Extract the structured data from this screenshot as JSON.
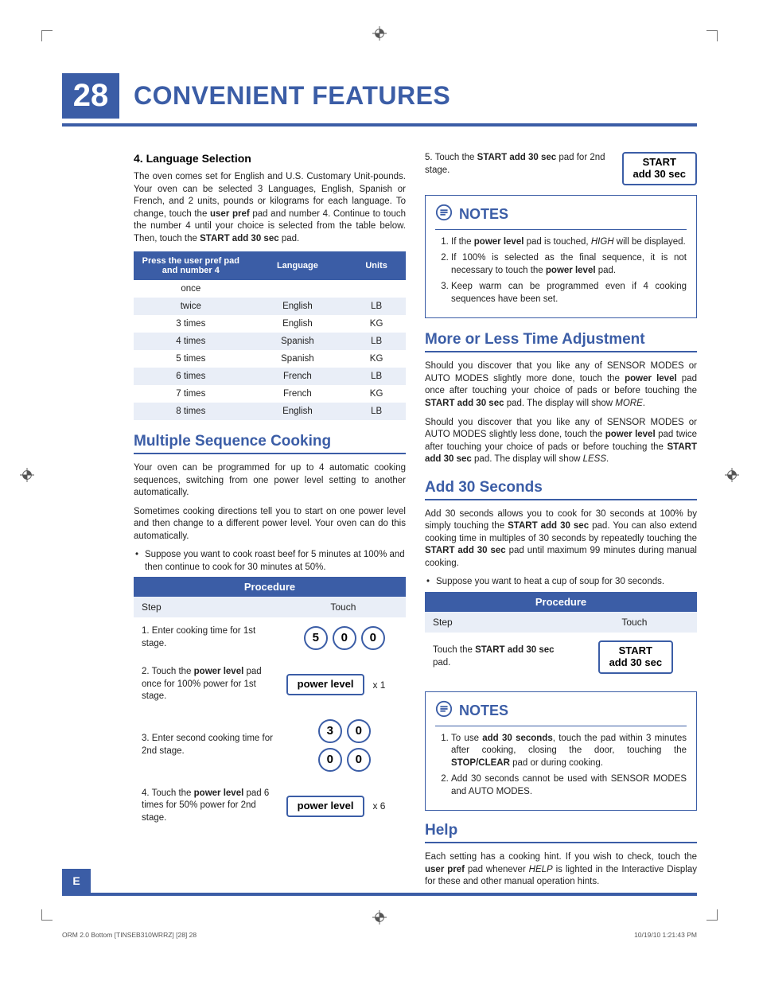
{
  "colors": {
    "accent": "#3b5da6",
    "row_alt": "#e9eef7",
    "text": "#222"
  },
  "page": {
    "number": "28",
    "title": "CONVENIENT FEATURES",
    "side_tab": "E"
  },
  "langsel": {
    "heading": "4. Language Selection",
    "intro": "The oven comes set for English and U.S. Customary Unit-pounds. Your oven can be selected 3 Languages, English, Spanish or French, and 2 units, pounds or kilograms for each language. To change, touch the <b>user pref</b> pad and number 4. Continue to touch the number 4 until your choice is selected from the table below. Then, touch the <b>START add 30 sec</b> pad.",
    "table": {
      "headers": [
        "Press the user pref pad and number 4",
        "Language",
        "Units"
      ],
      "rows": [
        [
          "once",
          "",
          ""
        ],
        [
          "twice",
          "English",
          "LB"
        ],
        [
          "3 times",
          "English",
          "KG"
        ],
        [
          "4 times",
          "Spanish",
          "LB"
        ],
        [
          "5 times",
          "Spanish",
          "KG"
        ],
        [
          "6 times",
          "French",
          "LB"
        ],
        [
          "7 times",
          "French",
          "KG"
        ],
        [
          "8 times",
          "English",
          "LB"
        ]
      ]
    }
  },
  "multiseq": {
    "title": "Multiple Sequence Cooking",
    "p1": "Your oven can be programmed for up to 4 automatic cooking sequences, switching from one power level setting to another automatically.",
    "p2": "Sometimes cooking directions tell you to start on one power level and then change to a different power level. Your oven can do this automatically.",
    "bullet": "Suppose you want to cook roast beef for 5 minutes at 100% and then continue to cook for 30 minutes at 50%.",
    "procedure_label": "Procedure",
    "step_label": "Step",
    "touch_label": "Touch",
    "steps": {
      "s1_text": "1.  Enter cooking time for 1st stage.",
      "s1_keys": [
        "5",
        "0",
        "0"
      ],
      "s2_text": "2.  Touch the <b>power level</b> pad once for 100% power for 1st stage.",
      "s2_pill": "power level",
      "s2_mult": "x 1",
      "s3_text": "3.  Enter second cooking time for 2nd stage.",
      "s3_keys_a": [
        "3",
        "0"
      ],
      "s3_keys_b": [
        "0",
        "0"
      ],
      "s4_text": "4.  Touch the <b>power level</b> pad 6 times for 50% power for 2nd stage.",
      "s4_pill": "power level",
      "s4_mult": "x 6"
    }
  },
  "right": {
    "step5_text": "5.  Touch the <b>START add 30 sec</b> pad for 2nd stage.",
    "step5_pill_line1": "START",
    "step5_pill_line2": "add 30 sec"
  },
  "notes1": {
    "label": "NOTES",
    "items": [
      "If the <b>power level</b> pad is touched, <i>HIGH</i> will be displayed.",
      "If 100% is selected as the final sequence, it is not necessary to touch the <b>power level</b> pad.",
      "Keep warm can be programmed even if 4 cooking sequences have been set."
    ]
  },
  "moreless": {
    "title": "More or Less Time Adjustment",
    "p1": "Should you discover that you like any of SENSOR MODES or AUTO MODES slightly more done, touch the <b>power level</b> pad once after touching your choice of pads or before touching the <b>START add 30 sec</b> pad. The display will show <i>MORE</i>.",
    "p2": "Should you discover that you like any of SENSOR MODES or AUTO MODES slightly less done, touch the <b>power level</b> pad twice after touching your choice of pads or before touching the <b>START add 30 sec</b> pad. The display will show <i>LESS</i>."
  },
  "add30": {
    "title": "Add 30 Seconds",
    "p1": "Add 30 seconds allows you to cook for 30 seconds at 100% by simply touching the <b>START add 30 sec</b> pad. You can also extend cooking time in multiples of 30 seconds by repeatedly touching the <b>START add 30 sec</b> pad until maximum 99 minutes during manual cooking.",
    "bullet": "Suppose you want to heat a cup of soup for 30 seconds.",
    "procedure_label": "Procedure",
    "step_label": "Step",
    "touch_label": "Touch",
    "row_text": "Touch the <b>START add 30 sec</b> pad.",
    "pill_line1": "START",
    "pill_line2": "add 30 sec"
  },
  "notes2": {
    "label": "NOTES",
    "items": [
      "To use <b>add 30 seconds</b>, touch the pad within 3 minutes after cooking, closing the door, touching the <b>STOP/CLEAR</b> pad or during cooking.",
      "Add 30 seconds cannot be used with SENSOR MODES and AUTO MODES."
    ]
  },
  "help": {
    "title": "Help",
    "p1": "Each setting has a cooking hint. If you wish to check, touch the <b>user pref</b> pad whenever <i>HELP</i> is lighted in the Interactive Display for these and other manual operation hints."
  },
  "footer": {
    "left": "ORM 2.0 Bottom [TINSEB310WRRZ] [28]   28",
    "right": "10/19/10   1:21:43 PM"
  }
}
